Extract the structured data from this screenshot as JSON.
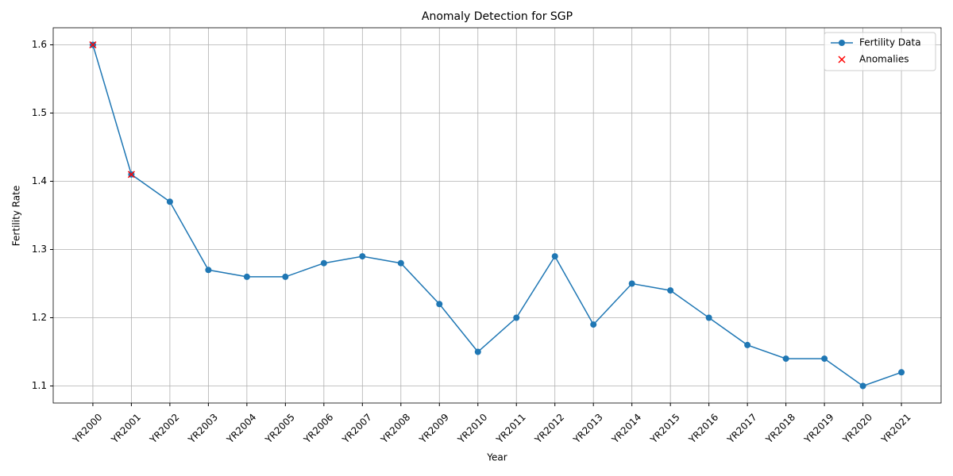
{
  "chart_data": {
    "type": "line",
    "title": "Anomaly Detection for SGP",
    "xlabel": "Year",
    "ylabel": "Fertility Rate",
    "categories": [
      "YR2000",
      "YR2001",
      "YR2002",
      "YR2003",
      "YR2004",
      "YR2005",
      "YR2006",
      "YR2007",
      "YR2008",
      "YR2009",
      "YR2010",
      "YR2011",
      "YR2012",
      "YR2013",
      "YR2014",
      "YR2015",
      "YR2016",
      "YR2017",
      "YR2018",
      "YR2019",
      "YR2020",
      "YR2021"
    ],
    "series": [
      {
        "name": "Fertility Data",
        "color": "#1f77b4",
        "marker": "o",
        "values": [
          1.6,
          1.41,
          1.37,
          1.27,
          1.26,
          1.26,
          1.28,
          1.29,
          1.28,
          1.22,
          1.15,
          1.2,
          1.29,
          1.19,
          1.25,
          1.24,
          1.2,
          1.16,
          1.14,
          1.14,
          1.1,
          1.12
        ]
      },
      {
        "name": "Anomalies",
        "color": "#ff0000",
        "marker": "x",
        "values": [
          1.6,
          1.41,
          null,
          null,
          null,
          null,
          null,
          null,
          null,
          null,
          null,
          null,
          null,
          null,
          null,
          null,
          null,
          null,
          null,
          null,
          null,
          null
        ]
      }
    ],
    "ylim": [
      1.075,
      1.625
    ],
    "yticks": [
      1.1,
      1.2,
      1.3,
      1.4,
      1.5,
      1.6
    ],
    "grid": true,
    "legend": "upper right"
  }
}
